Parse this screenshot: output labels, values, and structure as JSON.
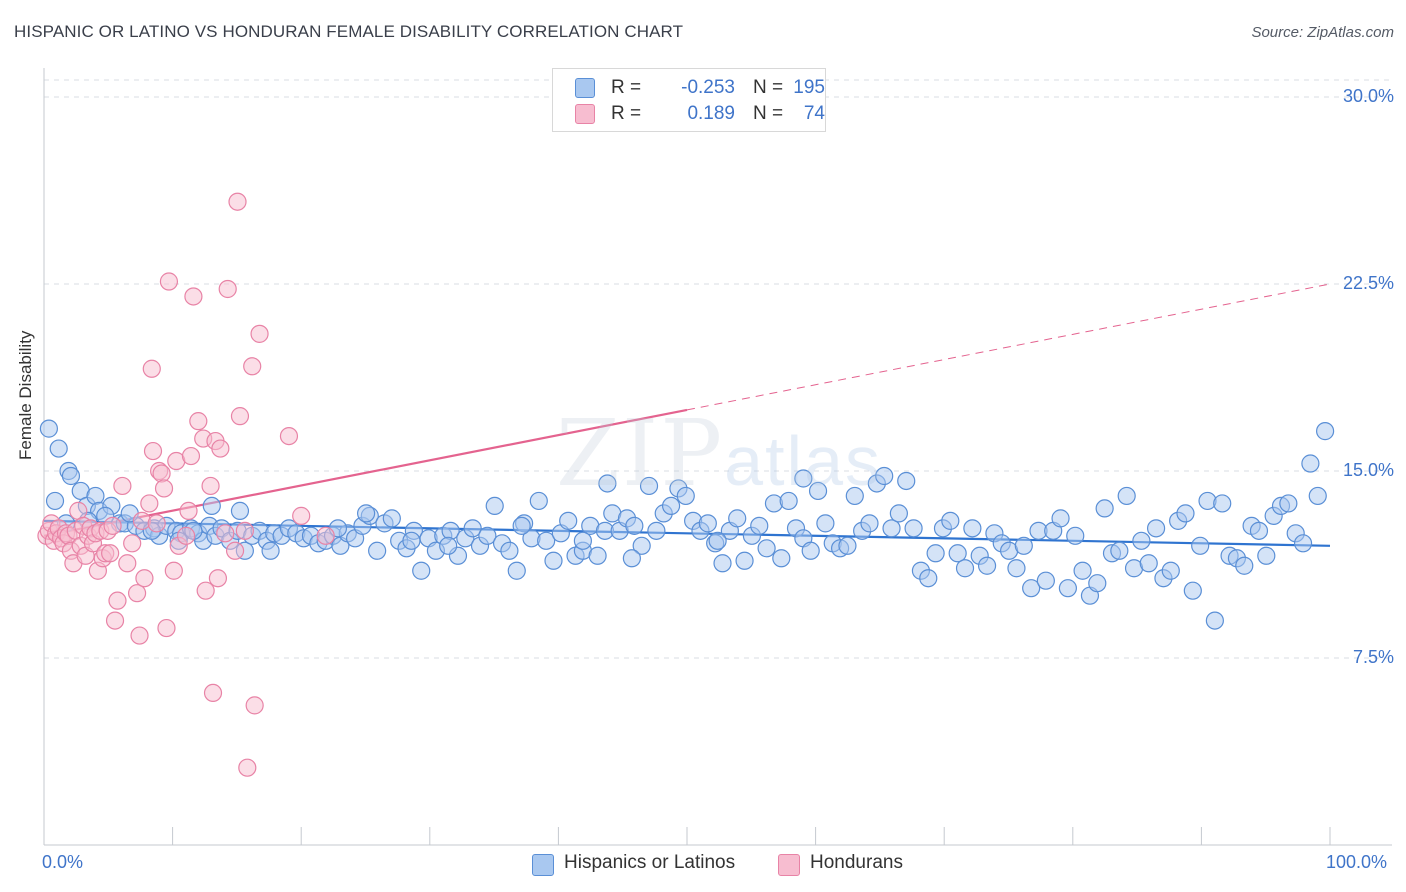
{
  "header": {
    "title": "HISPANIC OR LATINO VS HONDURAN FEMALE DISABILITY CORRELATION CHART",
    "source": "Source: ZipAtlas.com"
  },
  "watermark": {
    "main": "ZIP",
    "sub": "atlas"
  },
  "legend": {
    "rows": [
      {
        "r_label": "R =",
        "r_value": "-0.253",
        "n_label": "N =",
        "n_value": "195",
        "color": "#a9c8f0"
      },
      {
        "r_label": "R =",
        "r_value": "0.189",
        "n_label": "N =",
        "n_value": "74",
        "color": "#f7bdd0"
      }
    ]
  },
  "bottom_legend": {
    "series1": "Hispanics or Latinos",
    "series2": "Hondurans"
  },
  "colors": {
    "blue_fill": "#a9c8f0",
    "blue_stroke": "#5a8fd6",
    "blue_line": "#2f74d0",
    "pink_fill": "#f7bdd0",
    "pink_stroke": "#e883a6",
    "pink_line": "#e4638f",
    "axis_text": "#3f74c9",
    "grid": "#d9dde3"
  },
  "chart_data": {
    "type": "scatter",
    "title": "HISPANIC OR LATINO VS HONDURAN FEMALE DISABILITY CORRELATION CHART",
    "xlabel": "",
    "ylabel": "Female Disability",
    "xlim": [
      0,
      100
    ],
    "ylim": [
      0,
      30
    ],
    "x_tick_labels": [
      "0.0%",
      "100.0%"
    ],
    "y_ticks": [
      7.5,
      15.0,
      22.5,
      30.0
    ],
    "y_tick_labels": [
      "7.5%",
      "15.0%",
      "22.5%",
      "30.0%"
    ],
    "grid": true,
    "series": [
      {
        "name": "Hispanics or Latinos",
        "r": -0.253,
        "n": 195,
        "trend": {
          "x0": 0,
          "y0": 13.0,
          "x1": 100,
          "y1": 12.0,
          "dashed_from": null
        },
        "points": [
          [
            0.4,
            16.7
          ],
          [
            1.2,
            15.9
          ],
          [
            2.0,
            15.0
          ],
          [
            2.2,
            14.8
          ],
          [
            3.0,
            14.2
          ],
          [
            3.5,
            13.6
          ],
          [
            4.2,
            14.0
          ],
          [
            4.5,
            13.4
          ],
          [
            5.5,
            13.6
          ],
          [
            6.2,
            12.9
          ],
          [
            6.6,
            12.9
          ],
          [
            7.5,
            12.8
          ],
          [
            8.2,
            12.6
          ],
          [
            9.0,
            12.7
          ],
          [
            9.4,
            12.4
          ],
          [
            10.0,
            12.8
          ],
          [
            10.8,
            12.6
          ],
          [
            11.2,
            12.5
          ],
          [
            12.0,
            12.7
          ],
          [
            12.6,
            12.5
          ],
          [
            13.0,
            12.2
          ],
          [
            13.5,
            12.8
          ],
          [
            14.0,
            12.4
          ],
          [
            14.5,
            12.7
          ],
          [
            15.2,
            12.2
          ],
          [
            15.8,
            12.6
          ],
          [
            16.4,
            11.8
          ],
          [
            17.0,
            12.4
          ],
          [
            17.6,
            12.6
          ],
          [
            18.2,
            12.2
          ],
          [
            18.8,
            12.5
          ],
          [
            19.4,
            12.4
          ],
          [
            20.0,
            12.7
          ],
          [
            20.6,
            12.5
          ],
          [
            21.2,
            12.3
          ],
          [
            21.8,
            12.4
          ],
          [
            22.4,
            12.1
          ],
          [
            23.0,
            12.2
          ],
          [
            23.6,
            12.4
          ],
          [
            24.2,
            12.0
          ],
          [
            24.8,
            12.5
          ],
          [
            25.4,
            12.3
          ],
          [
            26.0,
            12.8
          ],
          [
            26.6,
            13.2
          ],
          [
            27.2,
            11.8
          ],
          [
            27.8,
            12.9
          ],
          [
            28.4,
            13.1
          ],
          [
            29.0,
            12.2
          ],
          [
            29.6,
            11.9
          ],
          [
            30.2,
            12.6
          ],
          [
            30.8,
            11.0
          ],
          [
            31.4,
            12.3
          ],
          [
            32.0,
            11.8
          ],
          [
            32.6,
            12.4
          ],
          [
            33.2,
            12.6
          ],
          [
            33.8,
            11.6
          ],
          [
            34.4,
            12.3
          ],
          [
            35.0,
            12.7
          ],
          [
            35.6,
            12.0
          ],
          [
            36.2,
            12.4
          ],
          [
            36.8,
            13.6
          ],
          [
            37.4,
            12.1
          ],
          [
            38.0,
            11.8
          ],
          [
            38.6,
            11.0
          ],
          [
            39.2,
            12.9
          ],
          [
            39.8,
            12.3
          ],
          [
            40.4,
            13.8
          ],
          [
            41.0,
            12.2
          ],
          [
            41.6,
            11.4
          ],
          [
            42.2,
            12.5
          ],
          [
            42.8,
            13.0
          ],
          [
            43.4,
            11.6
          ],
          [
            44.0,
            11.8
          ],
          [
            44.6,
            12.8
          ],
          [
            45.2,
            11.6
          ],
          [
            45.8,
            12.6
          ],
          [
            46.4,
            13.3
          ],
          [
            47.0,
            12.6
          ],
          [
            47.6,
            13.1
          ],
          [
            48.2,
            12.8
          ],
          [
            48.8,
            12.0
          ],
          [
            49.4,
            14.4
          ],
          [
            50.0,
            12.6
          ],
          [
            50.6,
            13.3
          ],
          [
            51.2,
            13.6
          ],
          [
            51.8,
            14.3
          ],
          [
            52.4,
            14.0
          ],
          [
            53.0,
            13.0
          ],
          [
            53.6,
            12.6
          ],
          [
            54.2,
            12.9
          ],
          [
            54.8,
            12.1
          ],
          [
            55.4,
            11.3
          ],
          [
            56.0,
            12.6
          ],
          [
            56.6,
            13.1
          ],
          [
            57.2,
            11.4
          ],
          [
            57.8,
            12.4
          ],
          [
            58.4,
            12.8
          ],
          [
            59.0,
            11.9
          ],
          [
            59.6,
            13.7
          ],
          [
            60.2,
            11.5
          ],
          [
            60.8,
            13.8
          ],
          [
            61.4,
            12.7
          ],
          [
            62.0,
            12.3
          ],
          [
            62.6,
            11.8
          ],
          [
            63.2,
            14.2
          ],
          [
            63.8,
            12.9
          ],
          [
            64.4,
            12.1
          ],
          [
            65.0,
            11.9
          ],
          [
            65.6,
            12.0
          ],
          [
            66.2,
            14.0
          ],
          [
            66.8,
            12.6
          ],
          [
            67.4,
            12.9
          ],
          [
            68.0,
            14.5
          ],
          [
            68.6,
            14.8
          ],
          [
            69.2,
            12.7
          ],
          [
            69.8,
            13.3
          ],
          [
            70.4,
            14.6
          ],
          [
            71.0,
            12.7
          ],
          [
            71.6,
            11.0
          ],
          [
            72.2,
            10.7
          ],
          [
            72.8,
            11.7
          ],
          [
            73.4,
            12.7
          ],
          [
            74.0,
            13.0
          ],
          [
            74.6,
            11.7
          ],
          [
            75.2,
            11.1
          ],
          [
            75.8,
            12.7
          ],
          [
            76.4,
            11.6
          ],
          [
            77.0,
            11.2
          ],
          [
            77.6,
            12.5
          ],
          [
            78.2,
            12.1
          ],
          [
            78.8,
            11.8
          ],
          [
            79.4,
            11.1
          ],
          [
            80.0,
            12.0
          ],
          [
            80.6,
            10.3
          ],
          [
            81.2,
            12.6
          ],
          [
            81.8,
            10.6
          ],
          [
            82.4,
            12.6
          ],
          [
            83.0,
            13.1
          ],
          [
            83.6,
            10.3
          ],
          [
            84.2,
            12.4
          ],
          [
            84.8,
            11.0
          ],
          [
            85.4,
            10.0
          ],
          [
            86.0,
            10.5
          ],
          [
            86.6,
            13.5
          ],
          [
            87.2,
            11.7
          ],
          [
            87.8,
            11.8
          ],
          [
            88.4,
            14.0
          ],
          [
            89.0,
            11.1
          ],
          [
            89.6,
            12.2
          ],
          [
            90.2,
            11.3
          ],
          [
            90.8,
            12.7
          ],
          [
            91.4,
            10.7
          ],
          [
            92.0,
            11.0
          ],
          [
            92.6,
            13.0
          ],
          [
            93.2,
            13.3
          ],
          [
            93.8,
            10.2
          ],
          [
            94.4,
            12.0
          ],
          [
            95.0,
            13.8
          ],
          [
            95.6,
            9.0
          ],
          [
            96.2,
            13.7
          ],
          [
            96.8,
            11.6
          ],
          [
            97.4,
            11.5
          ],
          [
            98.0,
            11.2
          ],
          [
            98.6,
            12.8
          ],
          [
            99.2,
            12.6
          ],
          [
            99.8,
            11.6
          ],
          [
            100.4,
            13.2
          ],
          [
            101.0,
            13.6
          ],
          [
            101.6,
            13.7
          ],
          [
            102.2,
            12.5
          ],
          [
            102.8,
            12.1
          ],
          [
            103.4,
            15.3
          ],
          [
            104.0,
            14.0
          ],
          [
            104.6,
            16.6
          ],
          [
            12.2,
            12.6
          ],
          [
            18.5,
            11.8
          ],
          [
            26.3,
            13.3
          ],
          [
            46.0,
            14.5
          ],
          [
            55.0,
            12.2
          ],
          [
            62.0,
            14.7
          ],
          [
            0.9,
            13.8
          ],
          [
            1.8,
            12.9
          ],
          [
            3.6,
            13.0
          ],
          [
            5.0,
            13.2
          ],
          [
            7.0,
            13.3
          ],
          [
            8.8,
            12.6
          ],
          [
            11.0,
            12.2
          ],
          [
            13.7,
            13.6
          ],
          [
            16.0,
            13.4
          ],
          [
            24.0,
            12.7
          ],
          [
            30.0,
            12.2
          ],
          [
            33.0,
            12.0
          ],
          [
            39.0,
            12.8
          ],
          [
            44.0,
            12.2
          ],
          [
            48.0,
            11.5
          ]
        ]
      },
      {
        "name": "Hondurans",
        "r": 0.189,
        "n": 74,
        "trend": {
          "x0": 0,
          "y0": 12.4,
          "x1": 100,
          "y1": 22.5,
          "dashed_from": 50
        },
        "points": [
          [
            0.2,
            12.4
          ],
          [
            0.4,
            12.6
          ],
          [
            0.6,
            12.9
          ],
          [
            0.8,
            12.2
          ],
          [
            1.0,
            12.5
          ],
          [
            1.2,
            12.7
          ],
          [
            1.4,
            12.3
          ],
          [
            1.6,
            12.1
          ],
          [
            1.8,
            12.5
          ],
          [
            2.0,
            12.4
          ],
          [
            2.2,
            11.8
          ],
          [
            2.4,
            11.3
          ],
          [
            2.6,
            12.6
          ],
          [
            2.8,
            13.4
          ],
          [
            3.0,
            12.0
          ],
          [
            3.2,
            12.8
          ],
          [
            3.4,
            11.6
          ],
          [
            3.6,
            12.4
          ],
          [
            3.8,
            12.7
          ],
          [
            4.0,
            12.1
          ],
          [
            4.2,
            12.5
          ],
          [
            4.4,
            11.0
          ],
          [
            4.6,
            12.6
          ],
          [
            4.8,
            11.5
          ],
          [
            5.0,
            11.7
          ],
          [
            5.2,
            12.6
          ],
          [
            5.4,
            11.7
          ],
          [
            5.6,
            12.8
          ],
          [
            5.8,
            9.0
          ],
          [
            6.0,
            9.8
          ],
          [
            6.4,
            14.4
          ],
          [
            6.8,
            11.3
          ],
          [
            7.2,
            12.1
          ],
          [
            7.6,
            10.1
          ],
          [
            7.8,
            8.4
          ],
          [
            8.0,
            13.0
          ],
          [
            8.2,
            10.7
          ],
          [
            8.6,
            13.7
          ],
          [
            8.8,
            19.1
          ],
          [
            8.9,
            15.8
          ],
          [
            9.2,
            12.9
          ],
          [
            9.4,
            15.0
          ],
          [
            9.6,
            14.9
          ],
          [
            9.8,
            14.3
          ],
          [
            10.0,
            8.7
          ],
          [
            10.2,
            22.6
          ],
          [
            10.6,
            11.0
          ],
          [
            10.8,
            15.4
          ],
          [
            11.0,
            12.0
          ],
          [
            11.6,
            12.4
          ],
          [
            11.8,
            13.4
          ],
          [
            12.0,
            15.6
          ],
          [
            12.2,
            22.0
          ],
          [
            12.6,
            17.0
          ],
          [
            13.0,
            16.3
          ],
          [
            13.2,
            10.2
          ],
          [
            13.6,
            14.4
          ],
          [
            13.8,
            6.1
          ],
          [
            14.0,
            16.2
          ],
          [
            14.2,
            10.7
          ],
          [
            14.4,
            15.9
          ],
          [
            14.8,
            12.5
          ],
          [
            15.0,
            22.3
          ],
          [
            15.6,
            11.8
          ],
          [
            15.8,
            25.8
          ],
          [
            16.0,
            17.2
          ],
          [
            16.4,
            12.6
          ],
          [
            16.6,
            3.1
          ],
          [
            17.0,
            19.2
          ],
          [
            17.2,
            5.6
          ],
          [
            17.6,
            20.5
          ],
          [
            20.0,
            16.4
          ],
          [
            21.0,
            13.2
          ],
          [
            23.0,
            12.4
          ]
        ]
      }
    ]
  }
}
